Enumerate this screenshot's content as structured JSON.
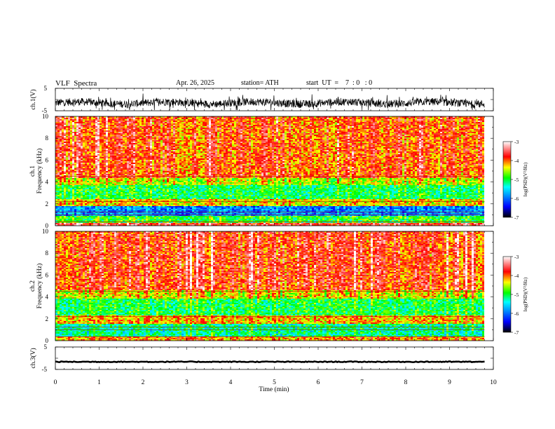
{
  "header": {
    "title": "VLF  Spectra",
    "date": "Apr. 26, 2025",
    "station": "station= ATH",
    "start": "start  UT  =    7  : 0   : 0"
  },
  "chart_data": [
    {
      "type": "line",
      "panel": "ch1-waveform",
      "ylabel": "ch.1(V)",
      "ylim": [
        -5,
        5
      ],
      "yticks": [
        "5",
        "-5"
      ],
      "xlim": [
        0,
        10
      ],
      "series_note_values": "continuous noisy VLF waveform, mean about -1.5 V, spread about +/-2 V, trace ends near t = 9.8 min"
    },
    {
      "type": "heatmap",
      "panel": "ch1-spectrogram",
      "ylabel": "ch.1\nFrequency  (kHz)",
      "ylim": [
        0,
        10
      ],
      "yticks": [
        "0",
        "2",
        "4",
        "6",
        "8",
        "10"
      ],
      "xlim": [
        0,
        10
      ],
      "data_xmax": 9.8,
      "bands": [
        {
          "from_khz": 0.0,
          "to_khz": 0.3,
          "level": -3.6
        },
        {
          "from_khz": 0.3,
          "to_khz": 0.9,
          "level": -4.9
        },
        {
          "from_khz": 0.9,
          "to_khz": 1.8,
          "level": -5.9
        },
        {
          "from_khz": 1.8,
          "to_khz": 2.4,
          "level": -4.3
        },
        {
          "from_khz": 2.4,
          "to_khz": 3.7,
          "level": -5.0
        },
        {
          "from_khz": 3.7,
          "to_khz": 4.3,
          "level": -4.5
        },
        {
          "from_khz": 4.3,
          "to_khz": 10.0,
          "level": -3.9
        }
      ],
      "colorbar": {
        "label": "log(PSD)(V²/Hz)",
        "range": [
          -7,
          -3
        ],
        "ticks": [
          "-3",
          "-4",
          "-5",
          "-6",
          "-7"
        ]
      }
    },
    {
      "type": "heatmap",
      "panel": "ch2-spectrogram",
      "ylabel": "ch.2\nFrequency  (kHz)",
      "ylim": [
        0,
        10
      ],
      "yticks": [
        "0",
        "2",
        "4",
        "6",
        "8",
        "10"
      ],
      "xlim": [
        0,
        10
      ],
      "data_xmax": 9.8,
      "bands": [
        {
          "from_khz": 0.0,
          "to_khz": 0.4,
          "level": -4.1
        },
        {
          "from_khz": 0.4,
          "to_khz": 1.6,
          "level": -5.2
        },
        {
          "from_khz": 1.6,
          "to_khz": 2.3,
          "level": -4.2
        },
        {
          "from_khz": 2.3,
          "to_khz": 3.9,
          "level": -5.0
        },
        {
          "from_khz": 3.9,
          "to_khz": 4.6,
          "level": -4.4
        },
        {
          "from_khz": 4.6,
          "to_khz": 10.0,
          "level": -3.8
        }
      ],
      "colorbar": {
        "label": "log(PSD)(V²/Hz)",
        "range": [
          -7,
          -3
        ],
        "ticks": [
          "-3",
          "-4",
          "-5",
          "-6",
          "-7"
        ]
      }
    },
    {
      "type": "line",
      "panel": "ch3-waveform",
      "ylabel": "ch.3(V)",
      "ylim": [
        -5,
        5
      ],
      "yticks": [
        "5",
        "-5"
      ],
      "xlim": [
        0,
        10
      ],
      "series_note_values": "flat trace near -1.6 V"
    }
  ],
  "xaxis": {
    "label": "Time  (min)",
    "ticks": [
      "0",
      "1",
      "2",
      "3",
      "4",
      "5",
      "6",
      "7",
      "8",
      "9",
      "10"
    ]
  },
  "colors": {
    "scale": [
      "#000000",
      "#0000ff",
      "#00ffff",
      "#00ff00",
      "#ffff00",
      "#ff0000",
      "#ffffff"
    ]
  }
}
